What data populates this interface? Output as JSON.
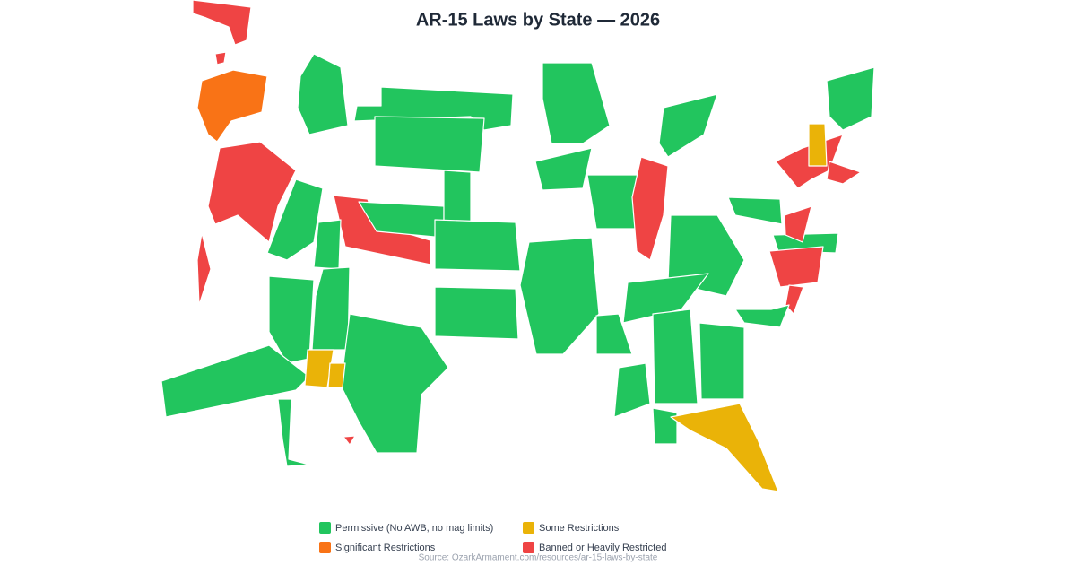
{
  "title": "AR-15 Laws by State — 2026",
  "legend": [
    {
      "label": "Permissive (No AWB, no mag limits)",
      "color": "#22c55e"
    },
    {
      "label": "Some Restrictions",
      "color": "#eab308"
    },
    {
      "label": "Significant Restrictions",
      "color": "#f97316"
    },
    {
      "label": "Banned or Heavily Restricted",
      "color": "#ef4444"
    }
  ],
  "source": "Source: OzarkArmament.com/resources/ar-15-laws-by-state"
}
